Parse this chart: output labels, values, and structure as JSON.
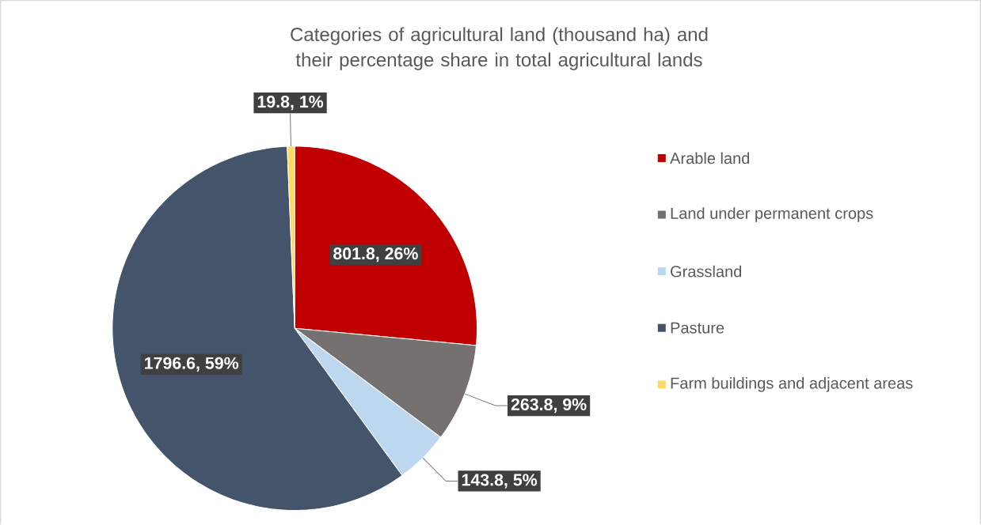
{
  "chart_data": {
    "type": "pie",
    "title": "Categories of agricultural land (thousand ha) and their percentage share in total agricultural lands",
    "categories": [
      "Arable land",
      "Land under permanent crops",
      "Grassland",
      "Pasture",
      "Farm buildings and adjacent areas"
    ],
    "values": [
      801.8,
      263.8,
      143.8,
      1796.6,
      19.8
    ],
    "colors": [
      "#c00000",
      "#767171",
      "#bdd7ee",
      "#44546a",
      "#ffd966"
    ],
    "value_labels": [
      "801.8, 26%",
      "263.8, 9%",
      "143.8, 5%",
      "1796.6, 59%",
      "19.8, 1%"
    ],
    "legend": "right"
  }
}
